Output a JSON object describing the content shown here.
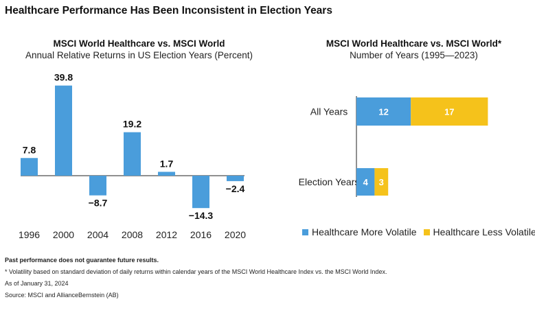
{
  "title": "Healthcare Performance Has Been Inconsistent in Election Years",
  "colors": {
    "blue": "#4a9ddb",
    "yellow": "#f5c21b",
    "axis": "#222222"
  },
  "chart_data": [
    {
      "type": "bar",
      "title": "MSCI World Healthcare vs. MSCI World",
      "subtitle": "Annual Relative Returns in US Election Years (Percent)",
      "categories": [
        "1996",
        "2000",
        "2004",
        "2008",
        "2012",
        "2016",
        "2020"
      ],
      "values": [
        7.8,
        39.8,
        -8.7,
        19.2,
        1.7,
        -14.3,
        -2.4
      ],
      "value_labels": [
        "7.8",
        "39.8",
        "−8.7",
        "19.2",
        "1.7",
        "−14.3",
        "−2.4"
      ],
      "ylim": [
        -20,
        42
      ],
      "grid": false,
      "color": "#4a9ddb"
    },
    {
      "type": "bar",
      "orientation": "horizontal",
      "stacked": true,
      "title": "MSCI World Healthcare vs. MSCI World*",
      "subtitle": "Number of Years (1995—2023)",
      "categories": [
        "All Years",
        "Election Years"
      ],
      "series": [
        {
          "name": "Healthcare More Volatile",
          "values": [
            12,
            4
          ],
          "color": "#4a9ddb"
        },
        {
          "name": "Healthcare Less Volatile",
          "values": [
            17,
            3
          ],
          "color": "#f5c21b"
        }
      ],
      "xlim": [
        0,
        29
      ],
      "legend": "bottom",
      "grid": false
    }
  ],
  "footnotes": [
    "Past performance does not guarantee future results.",
    "* Volatility based on standard deviation of daily returns within calendar years of the MSCI World Healthcare Index vs. the MSCI World Index.",
    "As of January 31, 2024",
    "Source: MSCI and AllianceBernstein (AB)"
  ]
}
